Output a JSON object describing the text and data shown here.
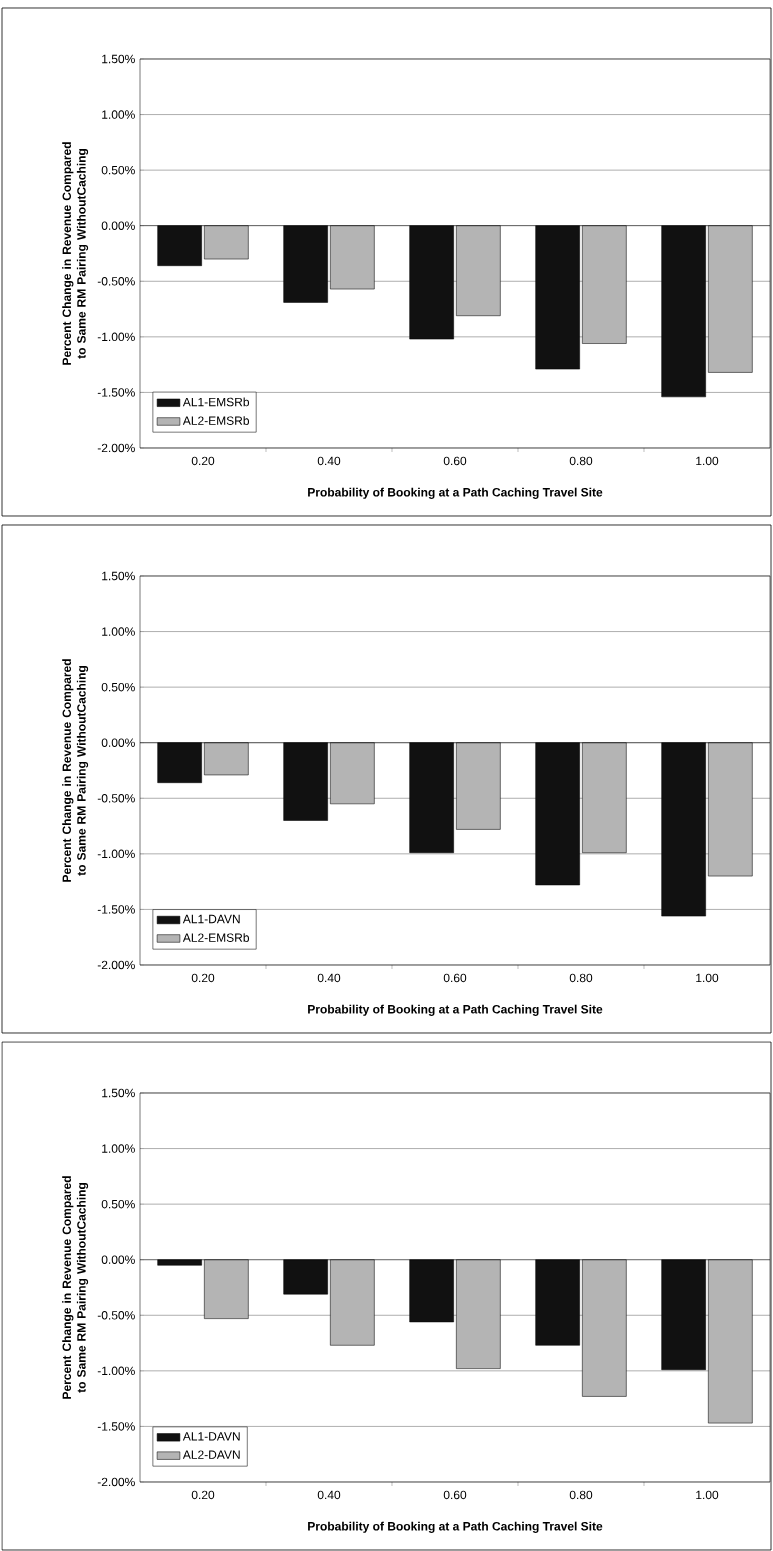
{
  "chart_data": [
    {
      "type": "bar",
      "xlabel": "Probability of Booking at a Path Caching Travel Site",
      "ylabel": "Percent Change in Revenue Compared to Same RM Pairing WithoutCaching",
      "categories": [
        "0.20",
        "0.40",
        "0.60",
        "0.80",
        "1.00"
      ],
      "series": [
        {
          "name": "AL1-EMSRb",
          "color": "#111111",
          "values": [
            -0.36,
            -0.69,
            -1.02,
            -1.29,
            -1.54
          ]
        },
        {
          "name": "AL2-EMSRb",
          "color": "#b4b4b4",
          "values": [
            -0.3,
            -0.57,
            -0.81,
            -1.06,
            -1.32
          ]
        }
      ],
      "ylim": [
        -2.0,
        1.5
      ],
      "yticks": [
        {
          "value": -2.0,
          "label": "-2.00%"
        },
        {
          "value": -1.5,
          "label": "-1.50%"
        },
        {
          "value": -1.0,
          "label": "-1.00%"
        },
        {
          "value": -0.5,
          "label": "-0.50%"
        },
        {
          "value": 0.0,
          "label": "0.00%"
        },
        {
          "value": 0.5,
          "label": "0.50%"
        },
        {
          "value": 1.0,
          "label": "1.00%"
        },
        {
          "value": 1.5,
          "label": "1.50%"
        }
      ],
      "grid": "y",
      "legend": "bottom left"
    },
    {
      "type": "bar",
      "xlabel": "Probability of Booking at a Path Caching Travel Site",
      "ylabel": "Percent Change in Revenue Compared to Same RM Pairing WithoutCaching",
      "categories": [
        "0.20",
        "0.40",
        "0.60",
        "0.80",
        "1.00"
      ],
      "series": [
        {
          "name": "AL1-DAVN",
          "color": "#111111",
          "values": [
            -0.36,
            -0.7,
            -0.99,
            -1.28,
            -1.56
          ]
        },
        {
          "name": "AL2-EMSRb",
          "color": "#b4b4b4",
          "values": [
            -0.29,
            -0.55,
            -0.78,
            -0.99,
            -1.2
          ]
        }
      ],
      "ylim": [
        -2.0,
        1.5
      ],
      "yticks": [
        {
          "value": -2.0,
          "label": "-2.00%"
        },
        {
          "value": -1.5,
          "label": "-1.50%"
        },
        {
          "value": -1.0,
          "label": "-1.00%"
        },
        {
          "value": -0.5,
          "label": "-0.50%"
        },
        {
          "value": 0.0,
          "label": "0.00%"
        },
        {
          "value": 0.5,
          "label": "0.50%"
        },
        {
          "value": 1.0,
          "label": "1.00%"
        },
        {
          "value": 1.5,
          "label": "1.50%"
        }
      ],
      "grid": "y",
      "legend": "bottom left"
    },
    {
      "type": "bar",
      "xlabel": "Probability of Booking at a Path Caching Travel Site",
      "ylabel": "Percent Change in Revenue Compared to Same RM Pairing WithoutCaching",
      "categories": [
        "0.20",
        "0.40",
        "0.60",
        "0.80",
        "1.00"
      ],
      "series": [
        {
          "name": "AL1-DAVN",
          "color": "#111111",
          "values": [
            -0.05,
            -0.31,
            -0.56,
            -0.77,
            -0.99
          ]
        },
        {
          "name": "AL2-DAVN",
          "color": "#b4b4b4",
          "values": [
            -0.53,
            -0.77,
            -0.98,
            -1.23,
            -1.47
          ]
        }
      ],
      "ylim": [
        -2.0,
        1.5
      ],
      "yticks": [
        {
          "value": -2.0,
          "label": "-2.00%"
        },
        {
          "value": -1.5,
          "label": "-1.50%"
        },
        {
          "value": -1.0,
          "label": "-1.00%"
        },
        {
          "value": -0.5,
          "label": "-0.50%"
        },
        {
          "value": 0.0,
          "label": "0.00%"
        },
        {
          "value": 0.5,
          "label": "0.50%"
        },
        {
          "value": 1.0,
          "label": "1.00%"
        },
        {
          "value": 1.5,
          "label": "1.50%"
        }
      ],
      "grid": "y",
      "legend": "bottom left"
    }
  ]
}
